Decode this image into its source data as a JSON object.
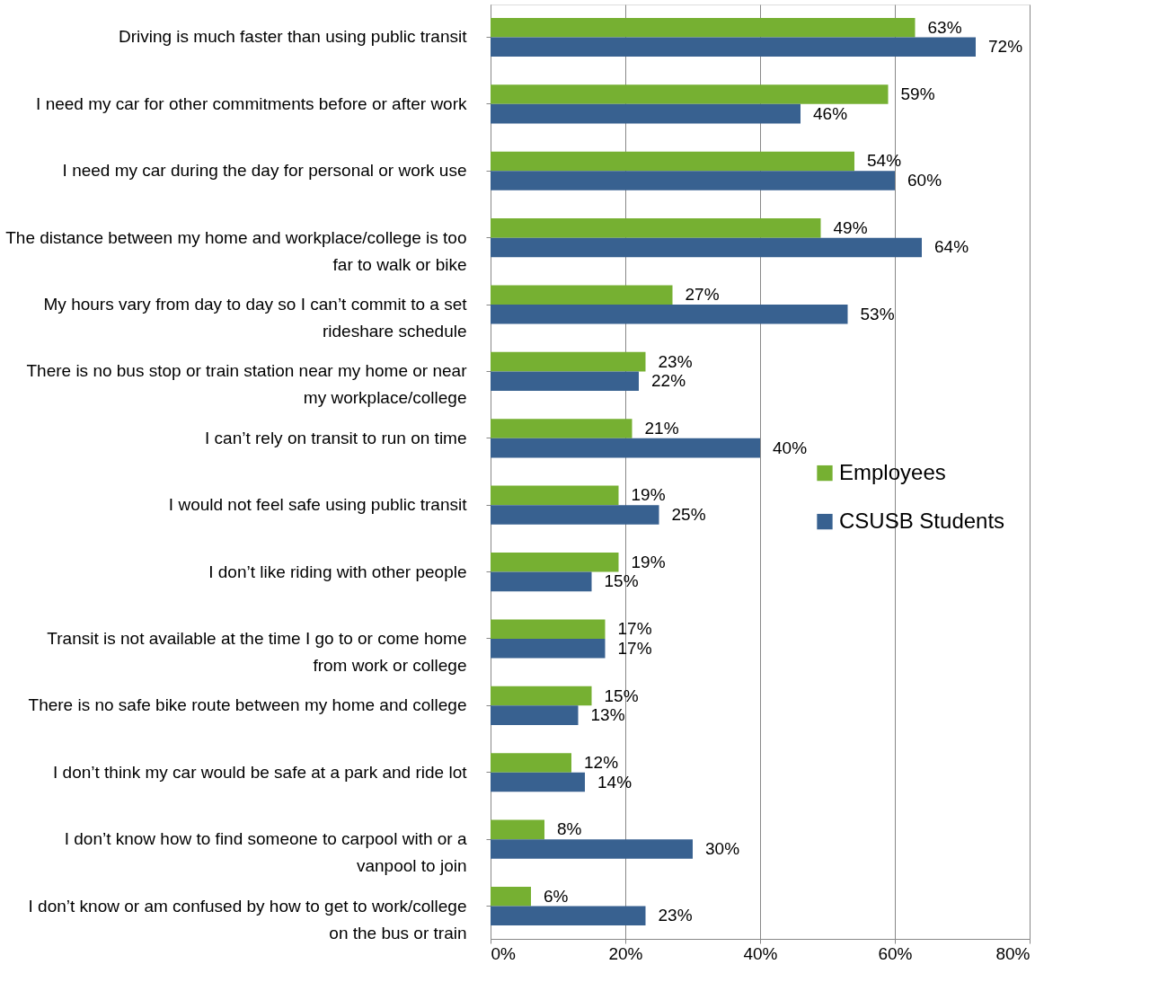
{
  "chart_data": {
    "type": "bar",
    "orientation": "horizontal",
    "categories": [
      "Driving is much faster than using public transit",
      "I need my car for other commitments before or after work",
      "I need my car during the day for personal or work use",
      "The distance between my home and workplace/college is too far to walk or bike",
      "My hours vary from day to day so I can’t commit to a set rideshare schedule",
      "There is no bus stop or train station near my home or near my workplace/college",
      "I can’t rely on transit to run on time",
      "I would not feel safe using public transit",
      "I don’t like riding with other people",
      "Transit is not available at the time I go to or come home from work or college",
      "There is no safe bike route between my home and college",
      "I don’t think my car would be safe at a park and ride lot",
      "I don’t know how to find someone to carpool with or a vanpool to join",
      "I don’t know or am confused by how to get to work/college on the bus or train"
    ],
    "series": [
      {
        "name": "Employees",
        "color": "#76b032",
        "values": [
          63,
          59,
          54,
          49,
          27,
          23,
          21,
          19,
          19,
          17,
          15,
          12,
          8,
          6
        ],
        "value_labels": [
          "63%",
          "59%",
          "54%",
          "49%",
          "27%",
          "23%",
          "21%",
          "19%",
          "19%",
          "17%",
          "15%",
          "12%",
          "8%",
          "6%"
        ]
      },
      {
        "name": "CSUSB Students",
        "color": "#386190",
        "values": [
          72,
          46,
          60,
          64,
          53,
          22,
          40,
          25,
          15,
          17,
          13,
          14,
          30,
          23
        ],
        "value_labels": [
          "72%",
          "46%",
          "60%",
          "64%",
          "53%",
          "22%",
          "40%",
          "25%",
          "15%",
          "17%",
          "13%",
          "14%",
          "30%",
          "23%"
        ]
      }
    ],
    "xlim": [
      0,
      80
    ],
    "xticks": [
      {
        "value": 0,
        "label": "0%"
      },
      {
        "value": 20,
        "label": "20%"
      },
      {
        "value": 40,
        "label": "40%"
      },
      {
        "value": 60,
        "label": "60%"
      },
      {
        "value": 80,
        "label": "80%"
      }
    ],
    "grid": "x",
    "legend": "right"
  }
}
